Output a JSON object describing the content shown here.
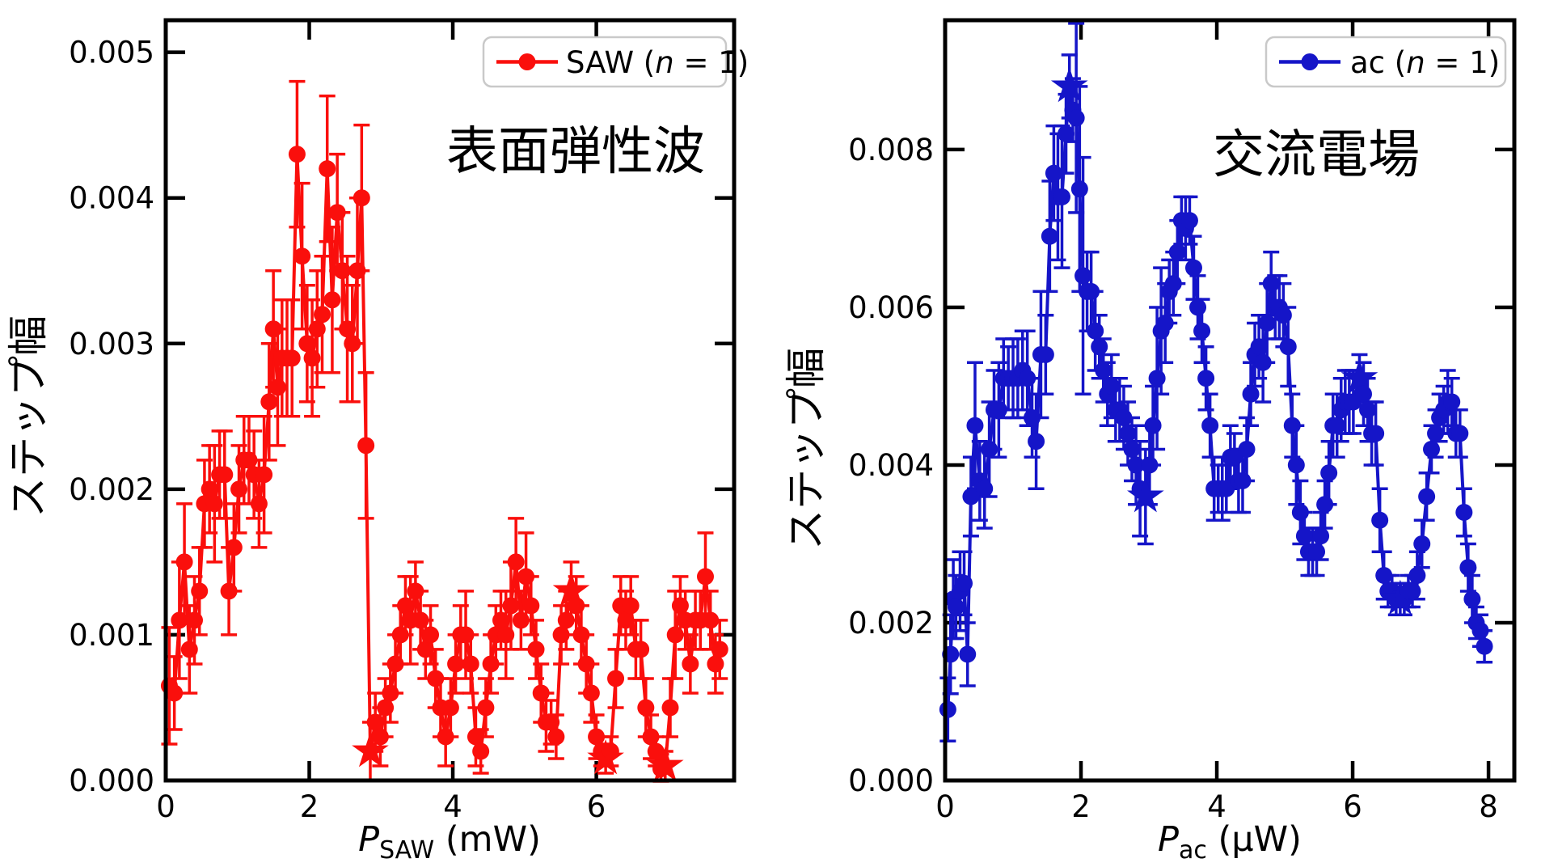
{
  "figure": {
    "background": "#ffffff"
  },
  "chart_data": [
    {
      "id": "saw",
      "type": "line",
      "title_annotation": "表面弾性波",
      "legend": {
        "pre": "SAW (",
        "var": "n",
        "post": " = 1)"
      },
      "xlabel": {
        "var": "P",
        "sub": "SAW",
        "post": " (mW)"
      },
      "ylabel": "ステップ幅",
      "series_color": "#fa0f0c",
      "marker": "circle-with-star-highlights",
      "grid": false,
      "legend_position": "upper-right",
      "xlim": [
        0,
        7.92
      ],
      "ylim": [
        0,
        0.00522
      ],
      "xtick_values": [
        0,
        2,
        4,
        6
      ],
      "xtick_labels": [
        "0",
        "2",
        "4",
        "6"
      ],
      "ytick_values": [
        0,
        0.001,
        0.002,
        0.003,
        0.004,
        0.005
      ],
      "ytick_labels": [
        "0.000",
        "0.001",
        "0.002",
        "0.003",
        "0.004",
        "0.005"
      ],
      "points": [
        [
          0.05,
          0.00065,
          0.0004
        ],
        [
          0.12,
          0.0006,
          0.00025
        ],
        [
          0.19,
          0.0011,
          0.0004
        ],
        [
          0.26,
          0.0015,
          0.0004
        ],
        [
          0.33,
          0.0009,
          0.0003
        ],
        [
          0.4,
          0.0011,
          0.0003
        ],
        [
          0.47,
          0.0013,
          0.0003
        ],
        [
          0.54,
          0.0019,
          0.0003
        ],
        [
          0.61,
          0.002,
          0.0003
        ],
        [
          0.68,
          0.0019,
          0.0004
        ],
        [
          0.75,
          0.0021,
          0.0003
        ],
        [
          0.82,
          0.0021,
          0.0003
        ],
        [
          0.88,
          0.0013,
          0.0003
        ],
        [
          0.95,
          0.0016,
          0.0003
        ],
        [
          1.02,
          0.002,
          0.0003
        ],
        [
          1.09,
          0.0022,
          0.0003
        ],
        [
          1.16,
          0.0022,
          0.0003
        ],
        [
          1.23,
          0.0021,
          0.0003
        ],
        [
          1.3,
          0.0019,
          0.0003
        ],
        [
          1.37,
          0.0021,
          0.0004
        ],
        [
          1.44,
          0.0026,
          0.0004
        ],
        [
          1.5,
          0.0031,
          0.0004
        ],
        [
          1.56,
          0.0027,
          0.0004
        ],
        [
          1.62,
          0.0029,
          0.0004
        ],
        [
          1.69,
          0.0029,
          0.0004
        ],
        [
          1.76,
          0.0029,
          0.0004
        ],
        [
          1.83,
          0.0043,
          0.0005
        ],
        [
          1.9,
          0.0036,
          0.0005
        ],
        [
          1.97,
          0.003,
          0.0004
        ],
        [
          2.04,
          0.0029,
          0.0004
        ],
        [
          2.11,
          0.0031,
          0.0004
        ],
        [
          2.18,
          0.0032,
          0.0004
        ],
        [
          2.25,
          0.0042,
          0.0005
        ],
        [
          2.32,
          0.0033,
          0.0005
        ],
        [
          2.39,
          0.0039,
          0.0004
        ],
        [
          2.46,
          0.0035,
          0.0004
        ],
        [
          2.53,
          0.0031,
          0.0005
        ],
        [
          2.6,
          0.003,
          0.0004
        ],
        [
          2.67,
          0.0035,
          0.0005
        ],
        [
          2.73,
          0.004,
          0.0005
        ],
        [
          2.79,
          0.0023,
          0.0005
        ],
        [
          2.85,
          0.0002,
          0.0002,
          1
        ],
        [
          2.92,
          0.0004,
          0.0002
        ],
        [
          2.99,
          0.0003,
          0.0002
        ],
        [
          3.06,
          0.0005,
          0.0002
        ],
        [
          3.13,
          0.0006,
          0.0002
        ],
        [
          3.2,
          0.0008,
          0.0002
        ],
        [
          3.27,
          0.001,
          0.0002
        ],
        [
          3.34,
          0.0012,
          0.0002
        ],
        [
          3.41,
          0.0011,
          0.0003
        ],
        [
          3.48,
          0.0013,
          0.0002
        ],
        [
          3.55,
          0.0011,
          0.0002
        ],
        [
          3.62,
          0.0009,
          0.0002
        ],
        [
          3.69,
          0.001,
          0.0002
        ],
        [
          3.76,
          0.0007,
          0.0002
        ],
        [
          3.83,
          0.0005,
          0.0002
        ],
        [
          3.9,
          0.0003,
          0.0002
        ],
        [
          3.97,
          0.0005,
          0.0002
        ],
        [
          4.04,
          0.0008,
          0.0002
        ],
        [
          4.11,
          0.001,
          0.0002
        ],
        [
          4.18,
          0.001,
          0.0003
        ],
        [
          4.25,
          0.0008,
          0.0002
        ],
        [
          4.32,
          0.0003,
          0.0002
        ],
        [
          4.39,
          0.0002,
          0.00015
        ],
        [
          4.46,
          0.0005,
          0.0002
        ],
        [
          4.53,
          0.0008,
          0.0002
        ],
        [
          4.6,
          0.001,
          0.0002
        ],
        [
          4.67,
          0.0011,
          0.0002
        ],
        [
          4.74,
          0.001,
          0.0003
        ],
        [
          4.81,
          0.0012,
          0.0003
        ],
        [
          4.88,
          0.0015,
          0.0003
        ],
        [
          4.95,
          0.0011,
          0.0002
        ],
        [
          5.02,
          0.0014,
          0.0003
        ],
        [
          5.09,
          0.0012,
          0.0002
        ],
        [
          5.16,
          0.0009,
          0.0002
        ],
        [
          5.23,
          0.0006,
          0.0002
        ],
        [
          5.3,
          0.0004,
          0.0002
        ],
        [
          5.37,
          0.0004,
          0.00015
        ],
        [
          5.44,
          0.0003,
          0.00015
        ],
        [
          5.51,
          0.001,
          0.0002
        ],
        [
          5.58,
          0.0011,
          0.0002
        ],
        [
          5.65,
          0.0013,
          0.0002,
          1
        ],
        [
          5.72,
          0.0012,
          0.0002
        ],
        [
          5.79,
          0.001,
          0.0002
        ],
        [
          5.86,
          0.0008,
          0.0002
        ],
        [
          5.93,
          0.0006,
          0.0002
        ],
        [
          6.0,
          0.0003,
          0.00015
        ],
        [
          6.07,
          0.0002,
          0.0001
        ],
        [
          6.13,
          0.00015,
          0.0001,
          1
        ],
        [
          6.2,
          0.0002,
          0.0001
        ],
        [
          6.27,
          0.0007,
          0.0002
        ],
        [
          6.34,
          0.0012,
          0.0002
        ],
        [
          6.41,
          0.0011,
          0.0002
        ],
        [
          6.48,
          0.0012,
          0.0002
        ],
        [
          6.55,
          0.0009,
          0.0002
        ],
        [
          6.62,
          0.0009,
          0.0002
        ],
        [
          6.69,
          0.0005,
          0.0002
        ],
        [
          6.76,
          0.0003,
          0.00015
        ],
        [
          6.83,
          0.0002,
          0.0001
        ],
        [
          6.9,
          8e-05,
          0.0001
        ],
        [
          6.96,
          0.0001,
          0.0001,
          1
        ],
        [
          7.03,
          0.0005,
          0.0002
        ],
        [
          7.1,
          0.001,
          0.0003
        ],
        [
          7.17,
          0.0012,
          0.0002
        ],
        [
          7.24,
          0.0011,
          0.0002
        ],
        [
          7.31,
          0.0008,
          0.0002
        ],
        [
          7.38,
          0.0011,
          0.0002
        ],
        [
          7.45,
          0.0011,
          0.0002
        ],
        [
          7.52,
          0.0014,
          0.0003
        ],
        [
          7.59,
          0.0011,
          0.0002
        ],
        [
          7.66,
          0.0008,
          0.0002
        ],
        [
          7.72,
          0.0009,
          0.0002
        ]
      ]
    },
    {
      "id": "ac",
      "type": "line",
      "title_annotation": "交流電場",
      "legend": {
        "pre": "ac (",
        "var": "n",
        "post": " = 1)"
      },
      "xlabel": {
        "var": "P",
        "sub": "ac",
        "post": " (μW)"
      },
      "ylabel": "ステップ幅",
      "series_color": "#1515c8",
      "marker": "circle-with-star-highlights",
      "grid": false,
      "legend_position": "upper-right",
      "xlim": [
        0,
        8.38
      ],
      "ylim": [
        0,
        0.00964
      ],
      "xtick_values": [
        0,
        2,
        4,
        6,
        8
      ],
      "xtick_labels": [
        "0",
        "2",
        "4",
        "6",
        "8"
      ],
      "ytick_values": [
        0,
        0.002,
        0.004,
        0.006,
        0.008
      ],
      "ytick_labels": [
        "0.000",
        "0.002",
        "0.004",
        "0.006",
        "0.008"
      ],
      "points": [
        [
          0.04,
          0.0009,
          0.0004
        ],
        [
          0.08,
          0.0016,
          0.0005
        ],
        [
          0.12,
          0.0023,
          0.0005
        ],
        [
          0.16,
          0.0022,
          0.0004
        ],
        [
          0.22,
          0.0024,
          0.0005
        ],
        [
          0.28,
          0.0025,
          0.0004
        ],
        [
          0.33,
          0.0016,
          0.0004
        ],
        [
          0.38,
          0.0036,
          0.0005
        ],
        [
          0.44,
          0.0045,
          0.0008
        ],
        [
          0.51,
          0.0038,
          0.0005
        ],
        [
          0.58,
          0.0037,
          0.0005
        ],
        [
          0.65,
          0.0042,
          0.0006
        ],
        [
          0.72,
          0.0047,
          0.0005
        ],
        [
          0.79,
          0.0047,
          0.0006
        ],
        [
          0.86,
          0.0051,
          0.0005
        ],
        [
          0.93,
          0.0051,
          0.0004
        ],
        [
          1.0,
          0.0051,
          0.0005
        ],
        [
          1.07,
          0.0051,
          0.0005
        ],
        [
          1.14,
          0.0052,
          0.0005
        ],
        [
          1.21,
          0.0051,
          0.0006
        ],
        [
          1.28,
          0.0046,
          0.0005
        ],
        [
          1.34,
          0.0043,
          0.0006
        ],
        [
          1.41,
          0.0054,
          0.0008
        ],
        [
          1.48,
          0.0054,
          0.0005
        ],
        [
          1.54,
          0.0069,
          0.0007
        ],
        [
          1.6,
          0.0077,
          0.0006
        ],
        [
          1.66,
          0.0074,
          0.0008
        ],
        [
          1.72,
          0.0074,
          0.0009
        ],
        [
          1.78,
          0.0082,
          0.0005
        ],
        [
          1.83,
          0.0088,
          0.0004,
          1
        ],
        [
          1.88,
          0.0085,
          0.0004
        ],
        [
          1.93,
          0.0084,
          0.0012
        ],
        [
          1.98,
          0.0075,
          0.0013
        ],
        [
          2.03,
          0.0064,
          0.0015
        ],
        [
          2.09,
          0.0062,
          0.0005
        ],
        [
          2.15,
          0.0062,
          0.0005
        ],
        [
          2.21,
          0.0057,
          0.0005
        ],
        [
          2.27,
          0.0055,
          0.0004
        ],
        [
          2.33,
          0.0052,
          0.0004
        ],
        [
          2.39,
          0.0049,
          0.0004
        ],
        [
          2.45,
          0.005,
          0.0004
        ],
        [
          2.51,
          0.0047,
          0.0004
        ],
        [
          2.57,
          0.0047,
          0.0004
        ],
        [
          2.63,
          0.0046,
          0.0004
        ],
        [
          2.69,
          0.0044,
          0.0004
        ],
        [
          2.75,
          0.0042,
          0.0004
        ],
        [
          2.81,
          0.004,
          0.0005
        ],
        [
          2.87,
          0.0037,
          0.0006
        ],
        [
          2.95,
          0.0036,
          0.0006,
          1
        ],
        [
          3.01,
          0.004,
          0.0005
        ],
        [
          3.06,
          0.0045,
          0.0005
        ],
        [
          3.12,
          0.0051,
          0.0009
        ],
        [
          3.18,
          0.0057,
          0.0008
        ],
        [
          3.24,
          0.0058,
          0.0005
        ],
        [
          3.3,
          0.0062,
          0.0004
        ],
        [
          3.36,
          0.0063,
          0.0004
        ],
        [
          3.42,
          0.0067,
          0.0004
        ],
        [
          3.48,
          0.0071,
          0.0003
        ],
        [
          3.54,
          0.007,
          0.0004
        ],
        [
          3.6,
          0.0071,
          0.0003
        ],
        [
          3.66,
          0.0065,
          0.0004
        ],
        [
          3.72,
          0.006,
          0.0004
        ],
        [
          3.78,
          0.0057,
          0.0004
        ],
        [
          3.84,
          0.0051,
          0.0004
        ],
        [
          3.9,
          0.0045,
          0.0004
        ],
        [
          3.96,
          0.0037,
          0.0004
        ],
        [
          4.02,
          0.0037,
          0.0003
        ],
        [
          4.08,
          0.0037,
          0.0004
        ],
        [
          4.14,
          0.0037,
          0.0003
        ],
        [
          4.2,
          0.0041,
          0.0004
        ],
        [
          4.26,
          0.0041,
          0.0003
        ],
        [
          4.32,
          0.0038,
          0.0004
        ],
        [
          4.38,
          0.0038,
          0.0004
        ],
        [
          4.44,
          0.0042,
          0.0004
        ],
        [
          4.5,
          0.0049,
          0.0004
        ],
        [
          4.56,
          0.0054,
          0.0004
        ],
        [
          4.62,
          0.0055,
          0.0004
        ],
        [
          4.68,
          0.0053,
          0.0005
        ],
        [
          4.74,
          0.0058,
          0.0005
        ],
        [
          4.8,
          0.0063,
          0.0004
        ],
        [
          4.86,
          0.006,
          0.0004
        ],
        [
          4.92,
          0.006,
          0.0004
        ],
        [
          4.98,
          0.0059,
          0.0004
        ],
        [
          5.05,
          0.0055,
          0.0005
        ],
        [
          5.11,
          0.0045,
          0.0004
        ],
        [
          5.17,
          0.004,
          0.0005
        ],
        [
          5.23,
          0.0034,
          0.0004
        ],
        [
          5.29,
          0.0031,
          0.0003
        ],
        [
          5.35,
          0.0029,
          0.0003
        ],
        [
          5.41,
          0.0029,
          0.0003
        ],
        [
          5.47,
          0.0029,
          0.0003
        ],
        [
          5.53,
          0.0031,
          0.0003
        ],
        [
          5.59,
          0.0035,
          0.0003
        ],
        [
          5.65,
          0.0039,
          0.0004
        ],
        [
          5.71,
          0.0045,
          0.0004
        ],
        [
          5.77,
          0.0045,
          0.0004
        ],
        [
          5.83,
          0.0047,
          0.0004
        ],
        [
          5.89,
          0.0048,
          0.0004
        ],
        [
          5.95,
          0.0048,
          0.0004
        ],
        [
          6.01,
          0.0048,
          0.0004
        ],
        [
          6.1,
          0.0051,
          0.0003,
          1
        ],
        [
          6.16,
          0.0049,
          0.0004
        ],
        [
          6.22,
          0.0047,
          0.0004
        ],
        [
          6.28,
          0.0044,
          0.0004
        ],
        [
          6.34,
          0.0044,
          0.0004
        ],
        [
          6.4,
          0.0033,
          0.0004
        ],
        [
          6.46,
          0.0026,
          0.0003
        ],
        [
          6.52,
          0.0024,
          0.0002
        ],
        [
          6.58,
          0.0024,
          0.0002
        ],
        [
          6.64,
          0.0023,
          0.0002
        ],
        [
          6.7,
          0.0023,
          0.0002,
          1
        ],
        [
          6.76,
          0.0023,
          0.0002
        ],
        [
          6.82,
          0.0024,
          0.0002
        ],
        [
          6.88,
          0.0024,
          0.0002
        ],
        [
          6.95,
          0.0026,
          0.0003
        ],
        [
          7.02,
          0.003,
          0.0003
        ],
        [
          7.09,
          0.0036,
          0.0003
        ],
        [
          7.16,
          0.0042,
          0.0003
        ],
        [
          7.22,
          0.0044,
          0.0003
        ],
        [
          7.28,
          0.0046,
          0.0003
        ],
        [
          7.34,
          0.0047,
          0.0003
        ],
        [
          7.4,
          0.0048,
          0.0004
        ],
        [
          7.46,
          0.0048,
          0.0003
        ],
        [
          7.52,
          0.0044,
          0.0003
        ],
        [
          7.58,
          0.0044,
          0.0003
        ],
        [
          7.64,
          0.0034,
          0.0003
        ],
        [
          7.7,
          0.0027,
          0.0003
        ],
        [
          7.76,
          0.0023,
          0.0003
        ],
        [
          7.82,
          0.002,
          0.0002
        ],
        [
          7.88,
          0.0019,
          0.0002
        ],
        [
          7.94,
          0.0017,
          0.0002
        ]
      ]
    }
  ]
}
